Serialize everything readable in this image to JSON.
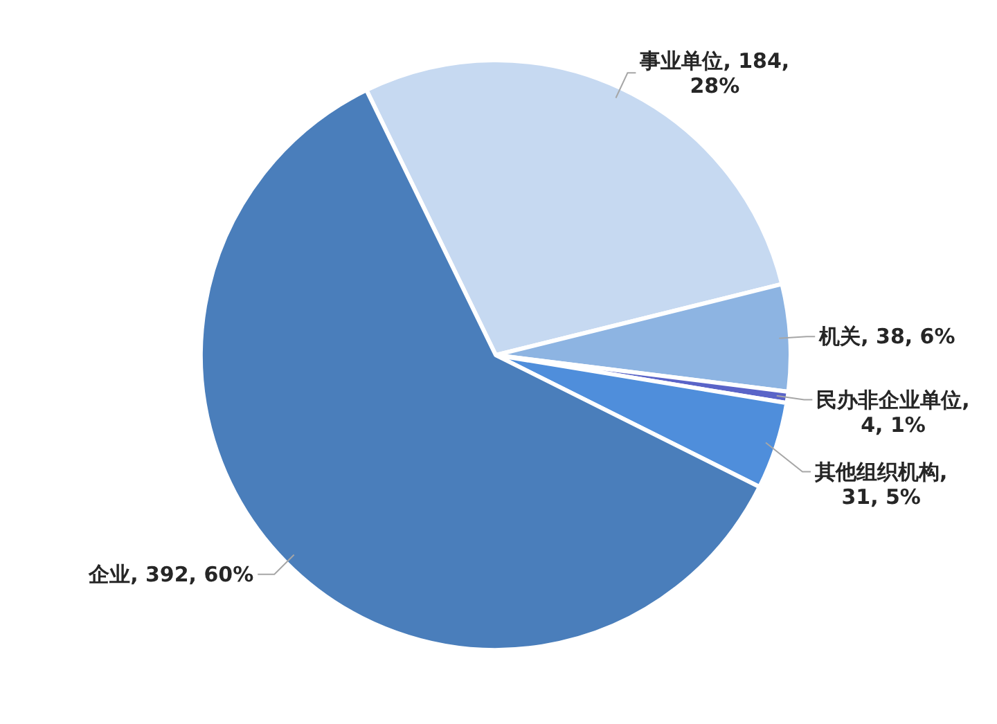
{
  "chart_data": {
    "type": "pie",
    "categories": [
      "事业单位",
      "机关",
      "民办非企业单位",
      "其他组织机构",
      "企业"
    ],
    "values": [
      184,
      38,
      4,
      31,
      392
    ],
    "colors": [
      "#c6d9f1",
      "#8db4e2",
      "#5a64c8",
      "#4f8edb",
      "#4a7ebb"
    ],
    "value_labels": [
      ", 184, 28%",
      ", 38, 6%",
      ", 4, 1%",
      ", 31, 5%",
      ", 392, 60%"
    ],
    "legend": false
  }
}
